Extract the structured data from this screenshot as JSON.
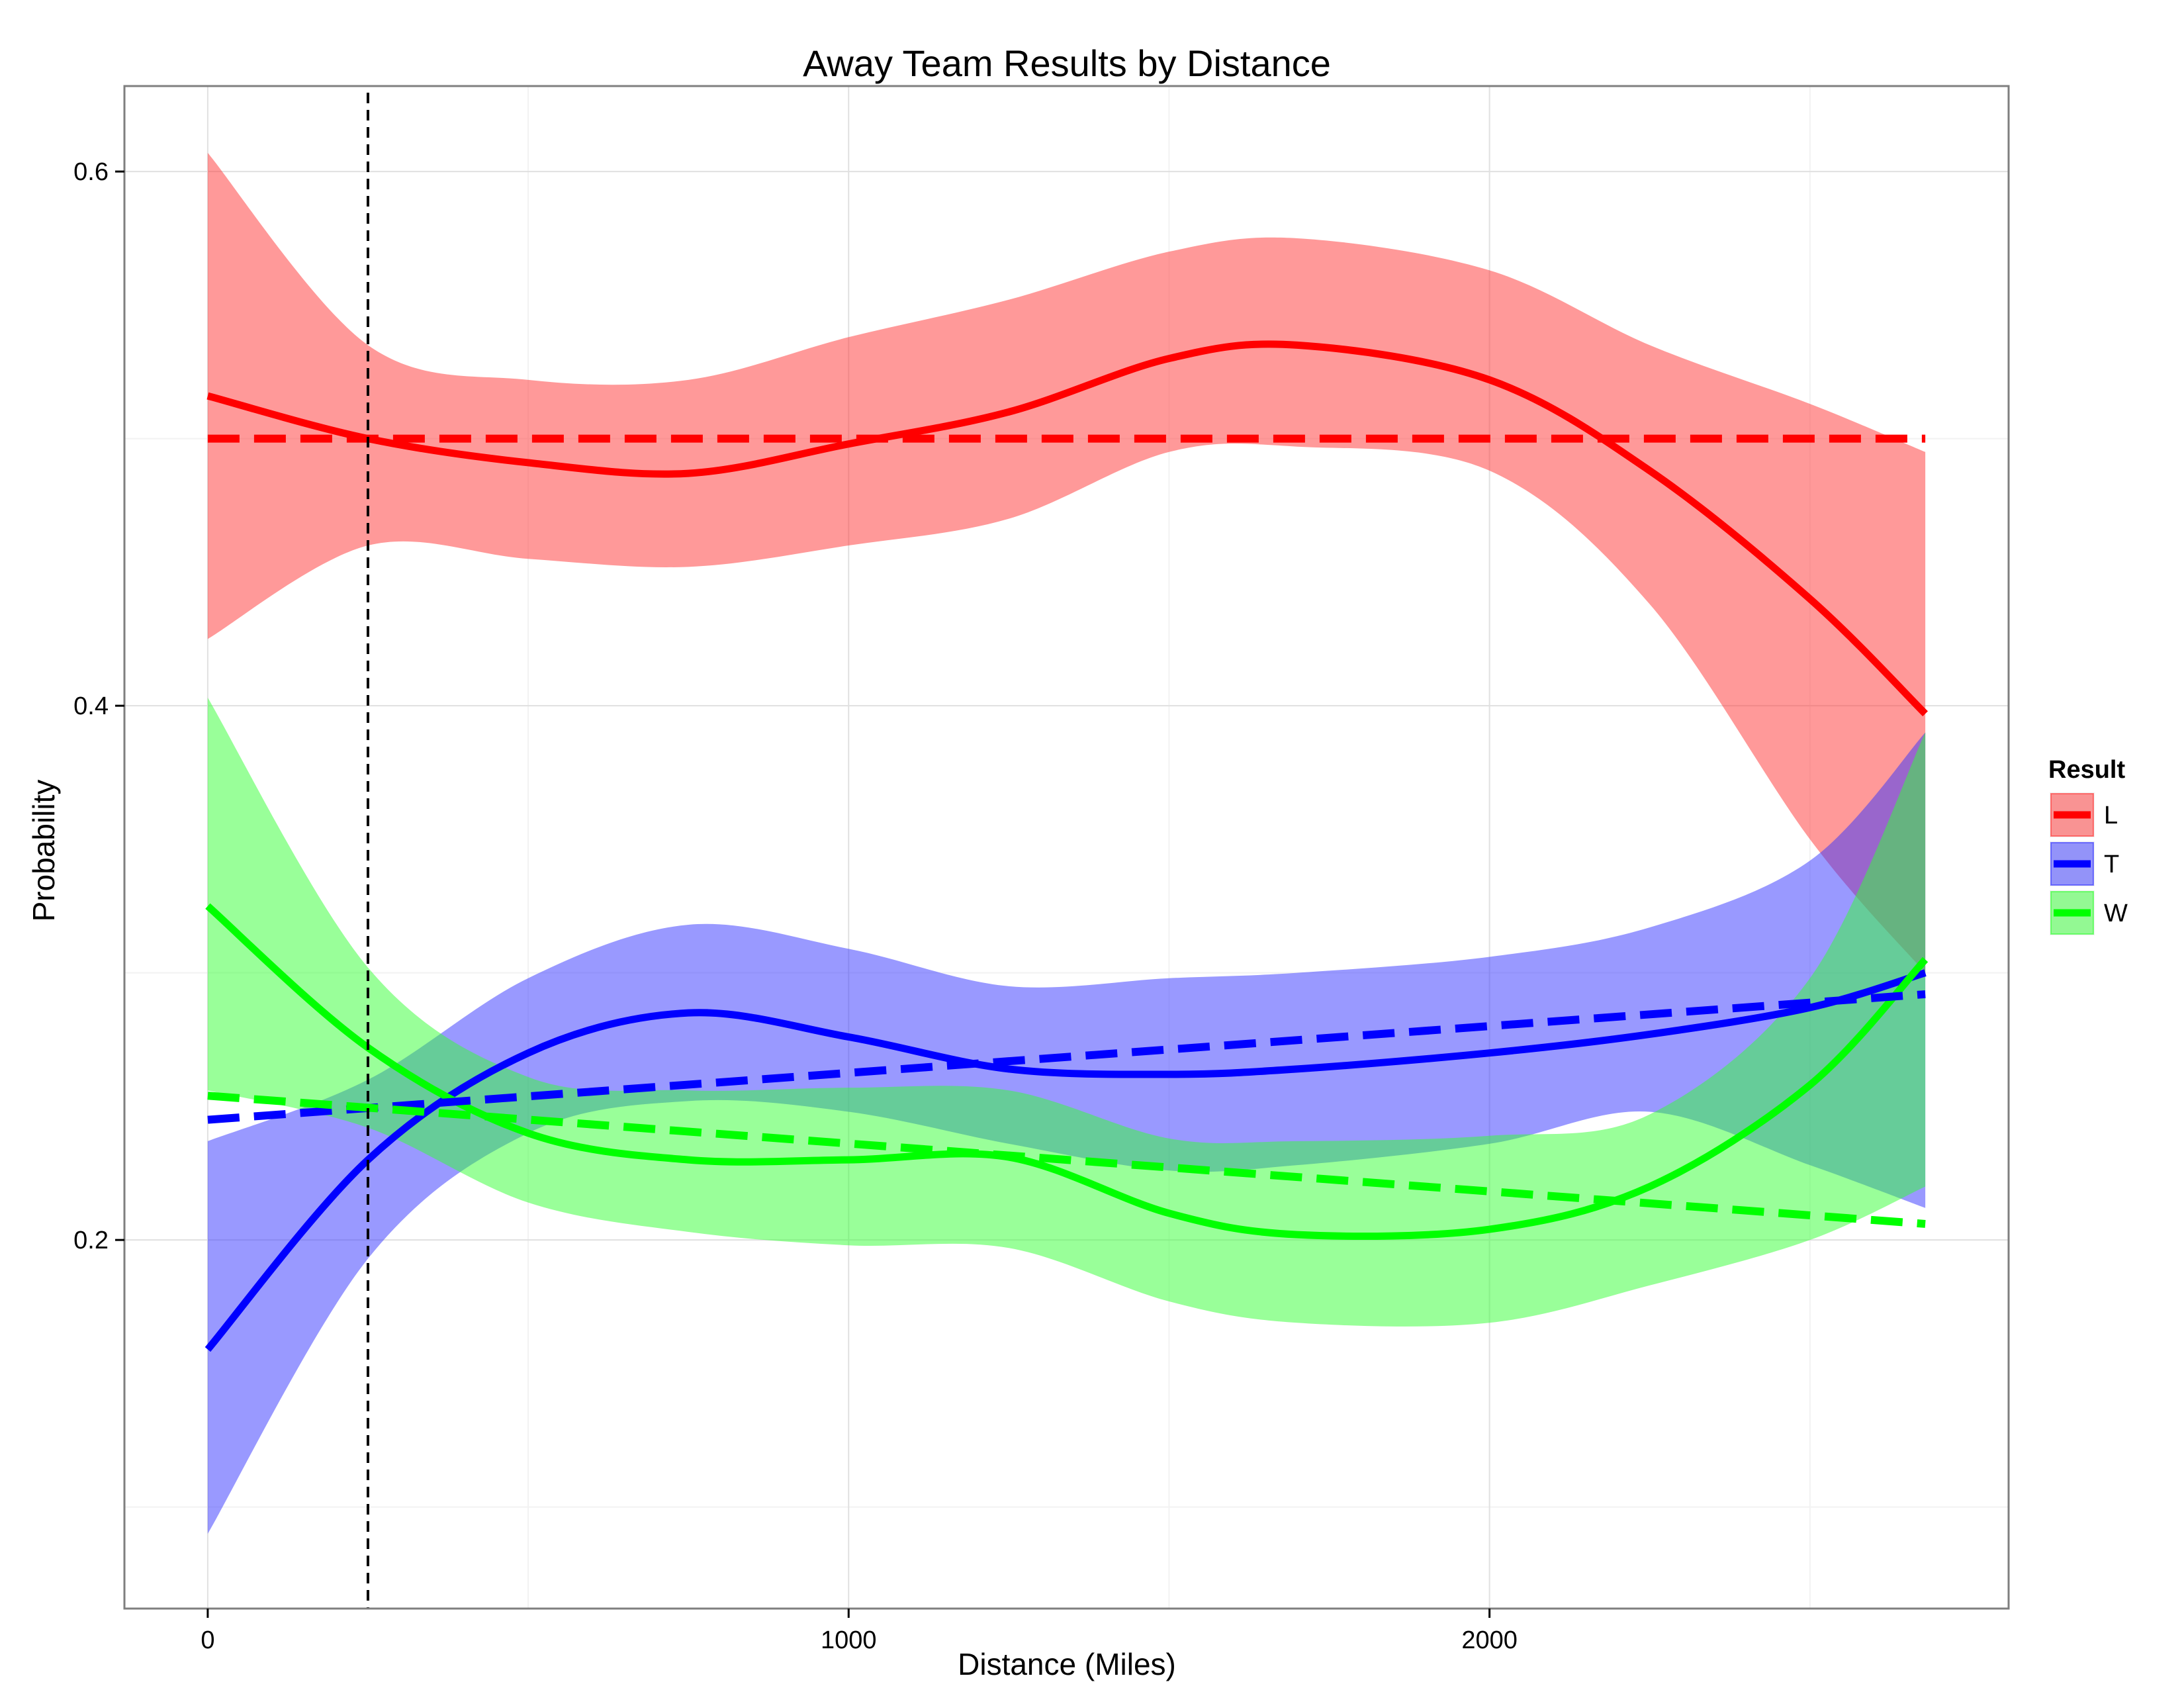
{
  "chart_data": {
    "type": "line",
    "title": "Away Team Results by Distance",
    "xlabel": "Distance (Miles)",
    "ylabel": "Probability",
    "xlim": [
      -130,
      2810
    ],
    "ylim": [
      0.062,
      0.632
    ],
    "x_ticks": [
      0,
      1000,
      2000
    ],
    "x_tick_labels": [
      "0",
      "1000",
      "2000"
    ],
    "y_ticks": [
      0.2,
      0.4,
      0.6
    ],
    "y_tick_labels": [
      "0.2",
      "0.4",
      "0.6"
    ],
    "x_minor_ticks": [
      500,
      1500,
      2500
    ],
    "y_minor_ticks": [
      0.1,
      0.3,
      0.5
    ],
    "grid": true,
    "vline": {
      "x": 250,
      "style": "dashed",
      "color": "#000000"
    },
    "legend": {
      "title": "Result",
      "placement": "right"
    },
    "series": [
      {
        "name": "L",
        "color": "#ff0000",
        "band_color": "#ff3333",
        "x": [
          0,
          250,
          500,
          750,
          1000,
          1250,
          1500,
          1700,
          2000,
          2250,
          2500,
          2680
        ],
        "smooth": [
          0.516,
          0.5,
          0.491,
          0.487,
          0.498,
          0.51,
          0.53,
          0.535,
          0.522,
          0.488,
          0.44,
          0.397
        ],
        "lower": [
          0.425,
          0.46,
          0.455,
          0.452,
          0.46,
          0.47,
          0.495,
          0.497,
          0.488,
          0.438,
          0.35,
          0.3
        ],
        "upper": [
          0.607,
          0.535,
          0.522,
          0.522,
          0.538,
          0.552,
          0.57,
          0.575,
          0.563,
          0.535,
          0.513,
          0.495
        ],
        "linear_x": [
          0,
          2680
        ],
        "linear_y": [
          0.5,
          0.5
        ]
      },
      {
        "name": "T",
        "color": "#0000ff",
        "band_color": "#3333ff",
        "x": [
          0,
          250,
          500,
          750,
          1000,
          1250,
          1500,
          1700,
          2000,
          2250,
          2500,
          2680
        ],
        "smooth": [
          0.159,
          0.23,
          0.27,
          0.285,
          0.276,
          0.264,
          0.262,
          0.264,
          0.27,
          0.277,
          0.287,
          0.3
        ],
        "lower": [
          0.09,
          0.193,
          0.24,
          0.252,
          0.248,
          0.236,
          0.226,
          0.228,
          0.236,
          0.248,
          0.228,
          0.212
        ],
        "upper": [
          0.237,
          0.26,
          0.298,
          0.318,
          0.309,
          0.295,
          0.298,
          0.3,
          0.306,
          0.317,
          0.342,
          0.39
        ],
        "linear_x": [
          0,
          2680
        ],
        "linear_y": [
          0.245,
          0.292
        ]
      },
      {
        "name": "W",
        "color": "#00ff00",
        "band_color": "#33ff33",
        "x": [
          0,
          250,
          500,
          750,
          1000,
          1250,
          1500,
          1700,
          2000,
          2250,
          2500,
          2680
        ],
        "smooth": [
          0.325,
          0.272,
          0.24,
          0.23,
          0.23,
          0.231,
          0.21,
          0.202,
          0.204,
          0.22,
          0.258,
          0.305
        ],
        "lower": [
          0.256,
          0.242,
          0.214,
          0.203,
          0.198,
          0.197,
          0.177,
          0.169,
          0.169,
          0.183,
          0.2,
          0.22
        ],
        "upper": [
          0.403,
          0.302,
          0.261,
          0.256,
          0.257,
          0.256,
          0.238,
          0.237,
          0.239,
          0.247,
          0.298,
          0.39
        ],
        "linear_x": [
          0,
          2680
        ],
        "linear_y": [
          0.254,
          0.206
        ]
      }
    ]
  }
}
